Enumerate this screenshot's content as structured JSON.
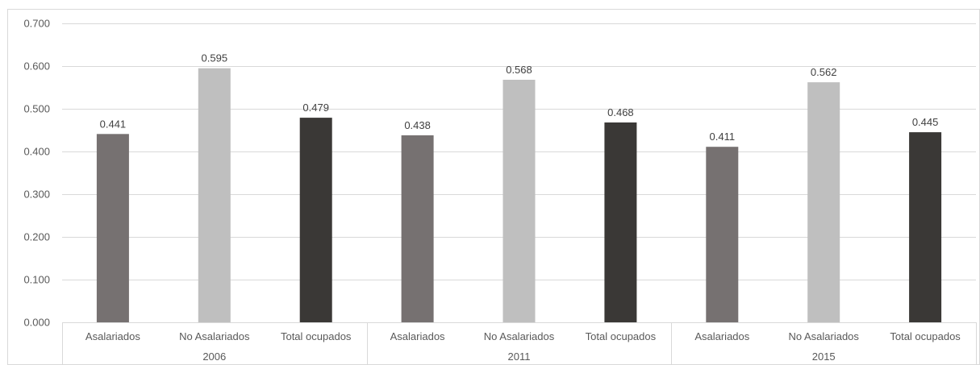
{
  "chart_data": {
    "type": "bar",
    "title": "",
    "xlabel": "",
    "ylabel": "",
    "ylim": [
      0,
      0.7
    ],
    "y_ticks": [
      "0.000",
      "0.100",
      "0.200",
      "0.300",
      "0.400",
      "0.500",
      "0.600",
      "0.700"
    ],
    "grid": true,
    "legend": "none",
    "colors": {
      "Asalariados": "#767171",
      "No Asalariados": "#bfbfbf",
      "Total ocupados": "#3a3836"
    },
    "groups": [
      {
        "label": "2006",
        "bars": [
          {
            "category": "Asalariados",
            "value": 0.441,
            "label": "0.441"
          },
          {
            "category": "No Asalariados",
            "value": 0.595,
            "label": "0.595"
          },
          {
            "category": "Total ocupados",
            "value": 0.479,
            "label": "0.479"
          }
        ]
      },
      {
        "label": "2011",
        "bars": [
          {
            "category": "Asalariados",
            "value": 0.438,
            "label": "0.438"
          },
          {
            "category": "No Asalariados",
            "value": 0.568,
            "label": "0.568"
          },
          {
            "category": "Total ocupados",
            "value": 0.468,
            "label": "0.468"
          }
        ]
      },
      {
        "label": "2015",
        "bars": [
          {
            "category": "Asalariados",
            "value": 0.411,
            "label": "0.411"
          },
          {
            "category": "No Asalariados",
            "value": 0.562,
            "label": "0.562"
          },
          {
            "category": "Total ocupados",
            "value": 0.445,
            "label": "0.445"
          }
        ]
      }
    ]
  }
}
